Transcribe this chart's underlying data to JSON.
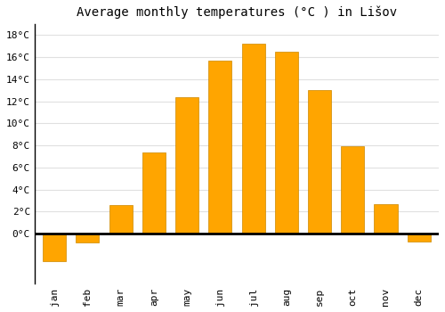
{
  "title": "Average monthly temperatures (°C ) in Lišov",
  "months": [
    "jan",
    "feb",
    "mar",
    "apr",
    "may",
    "jun",
    "jul",
    "aug",
    "sep",
    "oct",
    "nov",
    "dec"
  ],
  "temperatures": [
    -2.5,
    -0.8,
    2.6,
    7.4,
    12.4,
    15.7,
    17.2,
    16.5,
    13.0,
    7.9,
    2.7,
    -0.7
  ],
  "bar_color": "#FFA500",
  "bar_edge_color": "#CC8800",
  "ylim": [
    -4.5,
    19
  ],
  "yticks": [
    0,
    2,
    4,
    6,
    8,
    10,
    12,
    14,
    16,
    18
  ],
  "grid_color": "#e0e0e0",
  "background_color": "#ffffff",
  "title_fontsize": 10,
  "tick_fontsize": 8
}
